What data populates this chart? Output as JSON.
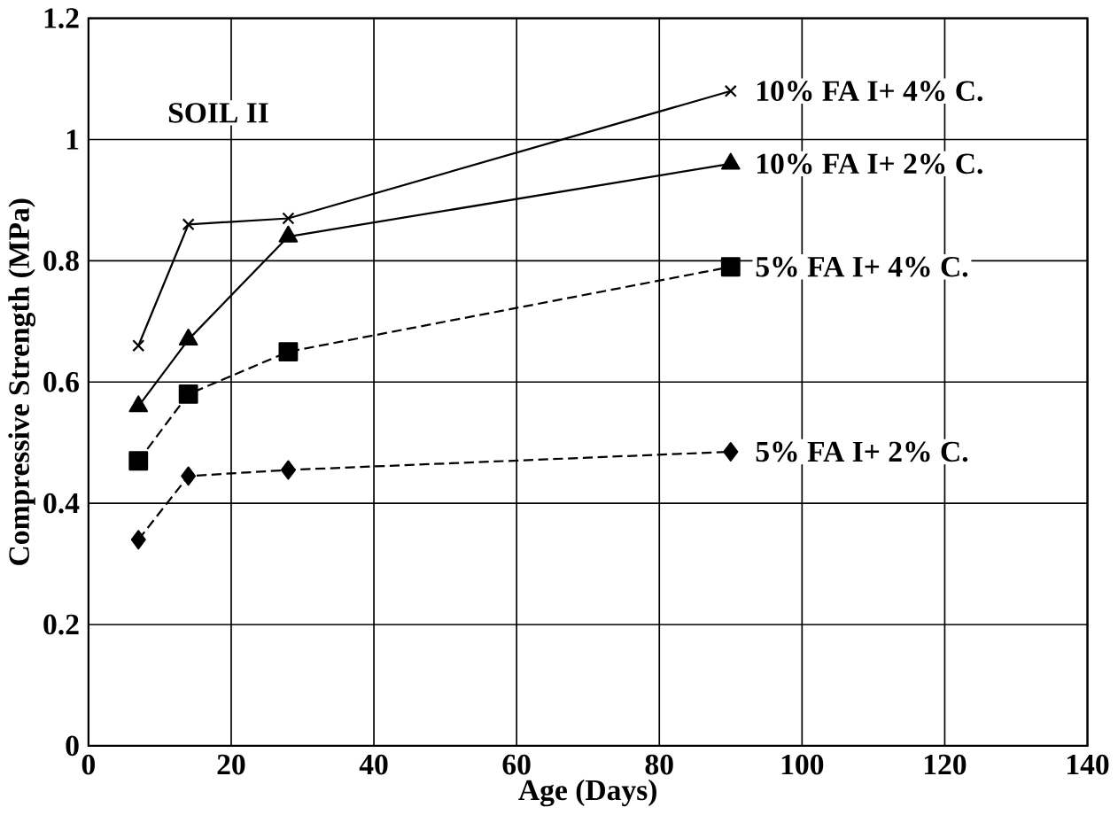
{
  "chart_data": {
    "type": "line",
    "xlabel": "Age (Days)",
    "ylabel": "Compressive Strength (MPa)",
    "xlim": [
      0,
      140
    ],
    "xticks": [
      0,
      20,
      40,
      60,
      80,
      100,
      120,
      140
    ],
    "ylim": [
      0,
      1.2
    ],
    "yticks": [
      0,
      0.2,
      0.4,
      0.6,
      0.8,
      1,
      1.2
    ],
    "grid": true,
    "annotations": [
      "SOIL II"
    ],
    "series": [
      {
        "name": "10% FA I+ 4% C.",
        "color": "#000000",
        "marker": "cross",
        "line_style": "solid",
        "x": [
          7,
          14,
          28,
          90
        ],
        "values": [
          0.66,
          0.86,
          0.87,
          1.08
        ]
      },
      {
        "name": "10% FA I+ 2% C.",
        "color": "#000000",
        "marker": "triangle",
        "line_style": "solid",
        "x": [
          7,
          14,
          28,
          90
        ],
        "values": [
          0.56,
          0.67,
          0.84,
          0.96
        ]
      },
      {
        "name": "5% FA I+ 4% C.",
        "color": "#000000",
        "marker": "square",
        "line_style": "dashed",
        "x": [
          7,
          14,
          28,
          90
        ],
        "values": [
          0.47,
          0.58,
          0.65,
          0.79
        ]
      },
      {
        "name": "5% FA I+ 2% C.",
        "color": "#000000",
        "marker": "diamond",
        "line_style": "dashed",
        "x": [
          7,
          14,
          28,
          90
        ],
        "values": [
          0.34,
          0.445,
          0.455,
          0.485
        ]
      }
    ]
  }
}
